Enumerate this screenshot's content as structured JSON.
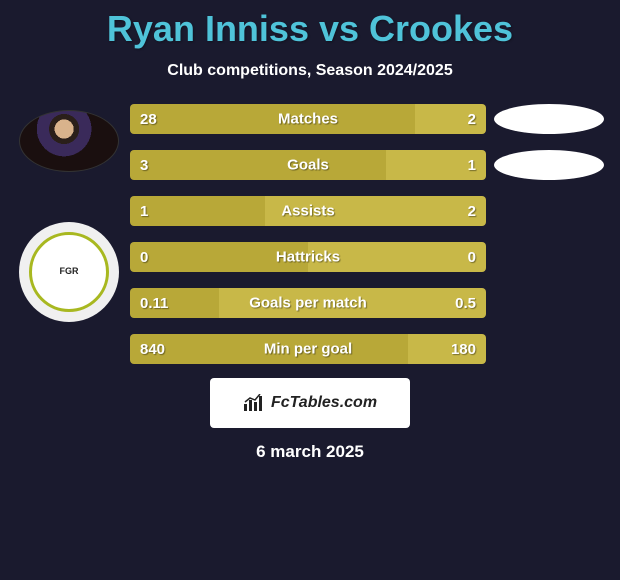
{
  "title": "Ryan Inniss vs Crookes",
  "subtitle": "Club competitions, Season 2024/2025",
  "date": "6 march 2025",
  "footer_label": "FcTables.com",
  "colors": {
    "background": "#1a1a2e",
    "title": "#4fc3d9",
    "left_bar": "#b8a838",
    "right_bar": "#c8b848",
    "text": "#ffffff",
    "ellipse": "#ffffff",
    "badge_bg": "#ffffff",
    "badge_text": "#222222"
  },
  "player2_badge": {
    "label": "FGR",
    "ring_color": "#a8b820"
  },
  "stats": [
    {
      "label": "Matches",
      "left_val": "28",
      "right_val": "2",
      "left_pct": 80,
      "has_ellipse": true
    },
    {
      "label": "Goals",
      "left_val": "3",
      "right_val": "1",
      "left_pct": 72,
      "has_ellipse": true
    },
    {
      "label": "Assists",
      "left_val": "1",
      "right_val": "2",
      "left_pct": 38,
      "has_ellipse": false
    },
    {
      "label": "Hattricks",
      "left_val": "0",
      "right_val": "0",
      "left_pct": 50,
      "has_ellipse": false
    },
    {
      "label": "Goals per match",
      "left_val": "0.11",
      "right_val": "0.5",
      "left_pct": 25,
      "has_ellipse": false
    },
    {
      "label": "Min per goal",
      "left_val": "840",
      "right_val": "180",
      "left_pct": 78,
      "has_ellipse": false
    }
  ]
}
